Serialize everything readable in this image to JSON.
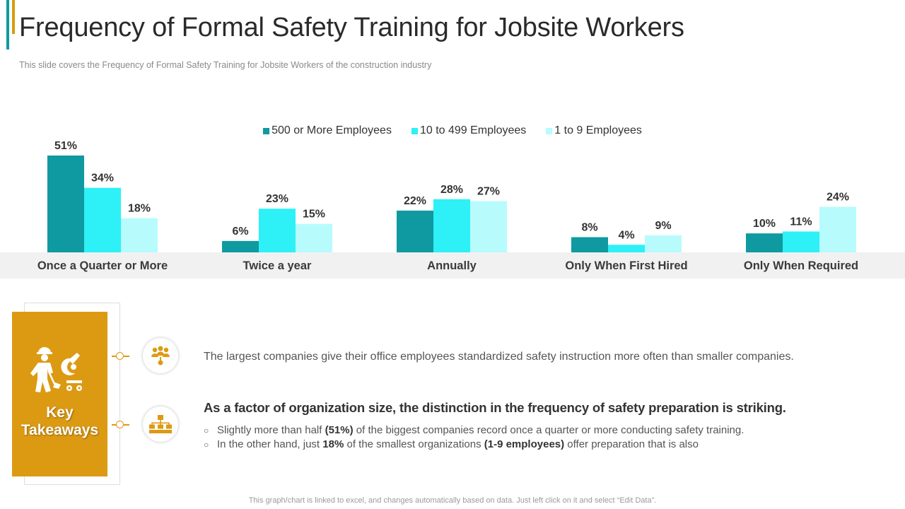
{
  "title": "Frequency of Formal Safety Training for Jobsite Workers",
  "subtitle": "This slide covers the Frequency of Formal Safety Training for Jobsite Workers of the construction industry",
  "colors": {
    "accent_gold": "#dc9a13",
    "accent_teal": "#0e9aa0"
  },
  "chart_data": {
    "type": "bar",
    "title": "",
    "xlabel": "",
    "ylabel": "",
    "ylim": [
      0,
      55
    ],
    "grid": false,
    "legend_position": "top-center",
    "categories": [
      "Once a Quarter or More",
      "Twice a year",
      "Annually",
      "Only When First Hired",
      "Only When Required"
    ],
    "series": [
      {
        "name": "500 or More Employees",
        "color": "#0e9aa0",
        "values": [
          51,
          6,
          22,
          8,
          10
        ]
      },
      {
        "name": "10 to 499 Employees",
        "color": "#2ef0f7",
        "values": [
          34,
          23,
          28,
          4,
          11
        ]
      },
      {
        "name": "1 to 9 Employees",
        "color": "#b8fbfd",
        "values": [
          18,
          15,
          27,
          9,
          24
        ]
      }
    ],
    "value_suffix": "%"
  },
  "takeaways": {
    "card_title_line1": "Key",
    "card_title_line2": "Takeaways",
    "point1": "The largest companies give their office employees standardized safety instruction more often than smaller companies.",
    "point2_heading": "As a factor of organization size, the distinction in the frequency of safety preparation is striking.",
    "bullet_mark": "○",
    "bullet1": {
      "before": "Slightly more than half ",
      "bold": "(51%)",
      "after": " of the biggest companies record once a quarter or more conducting safety training."
    },
    "bullet2": {
      "before": "In the other hand, just ",
      "bold1": "18%",
      "middle": " of the smallest organizations ",
      "bold2": "(1-9 employees)",
      "after": " offer preparation that is also"
    },
    "icons": [
      "worker-icon",
      "team-icon",
      "hierarchy-icon"
    ]
  },
  "footnote": "This graph/chart is linked to excel, and changes automatically based on data. Just left click on it and select “Edit Data”."
}
